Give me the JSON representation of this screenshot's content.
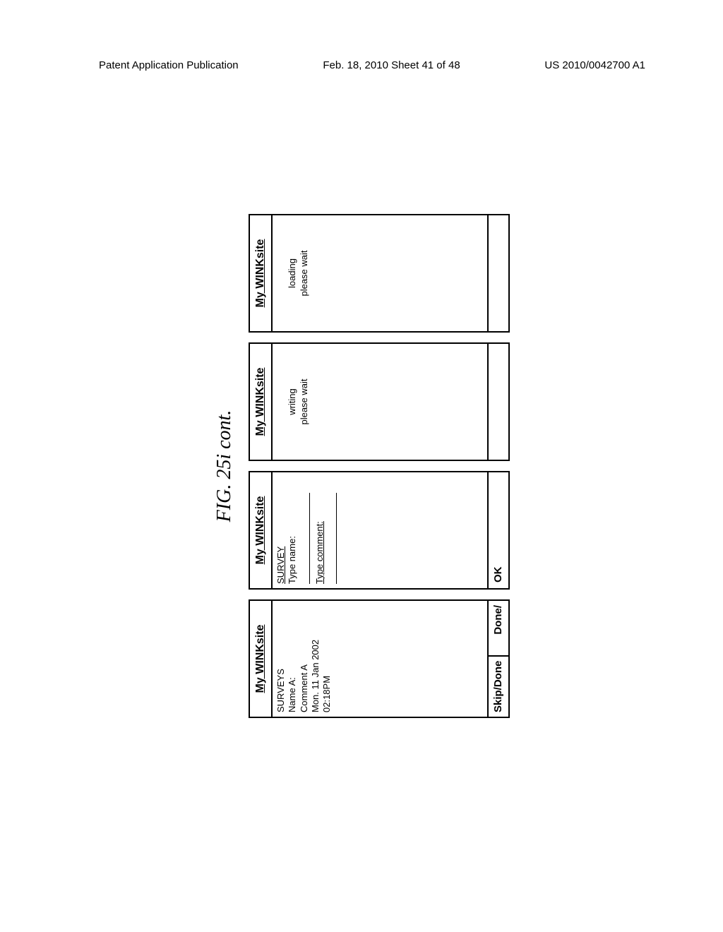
{
  "header": {
    "left": "Patent Application Publication",
    "center": "Feb. 18, 2010  Sheet 41 of 48",
    "right": "US 2010/0042700 A1"
  },
  "figure_label": "FIG. 25i cont.",
  "screens": [
    {
      "title": "My WINKsite",
      "body_lines": [
        "SURVEYS",
        "Name A:",
        "Comment A",
        "Mon. 11 Jan 2002",
        "02:18PM"
      ],
      "footer_left": "Skip/Done",
      "footer_right": "Done/"
    },
    {
      "title": "My WINKsite",
      "survey_label": "SURVEY",
      "type_name_label": "Type name:",
      "type_comment_label": "Type comment:",
      "footer_single": "OK"
    },
    {
      "title": "My WINKsite",
      "status_line1": "writing",
      "status_line2": "please wait"
    },
    {
      "title": "My WINKsite",
      "status_line1": "loading",
      "status_line2": "please wait"
    }
  ]
}
